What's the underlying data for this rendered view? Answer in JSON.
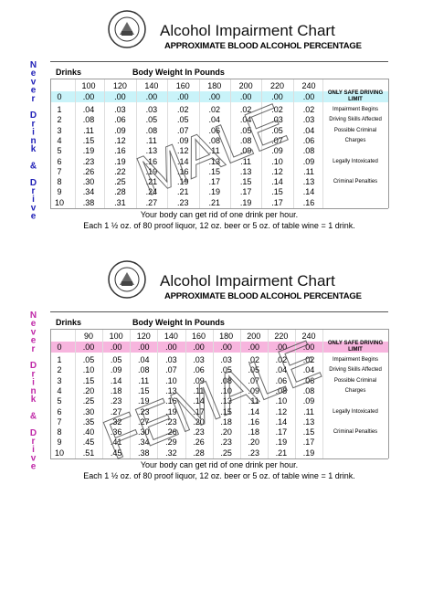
{
  "sections": [
    {
      "title": "Alcohol Impairment Chart",
      "subtitle": "APPROXIMATE BLOOD ALCOHOL PERCENTAGE",
      "side_text": "Never Drink & Drive",
      "watermark": "MALE",
      "drinks_header": "Drinks",
      "weight_header": "Body Weight In Pounds",
      "row_color": "#c9f3f9",
      "side_color": "#2323b8",
      "weights": [
        "100",
        "120",
        "140",
        "160",
        "180",
        "200",
        "220",
        "240"
      ],
      "rows": [
        {
          "drinks": "0",
          "values": [
            ".00",
            ".00",
            ".00",
            ".00",
            ".00",
            ".00",
            ".00",
            ".00"
          ],
          "note": "ONLY SAFE DRIVING LIMIT"
        },
        {
          "drinks": "1",
          "values": [
            ".04",
            ".03",
            ".03",
            ".02",
            ".02",
            ".02",
            ".02",
            ".02"
          ],
          "note": "Impairment Begins"
        },
        {
          "drinks": "2",
          "values": [
            ".08",
            ".06",
            ".05",
            ".05",
            ".04",
            ".04",
            ".03",
            ".03"
          ],
          "note": "Driving Skills Affected"
        },
        {
          "drinks": "3",
          "values": [
            ".11",
            ".09",
            ".08",
            ".07",
            ".06",
            ".05",
            ".05",
            ".04"
          ],
          "note": "Possible Criminal"
        },
        {
          "drinks": "4",
          "values": [
            ".15",
            ".12",
            ".11",
            ".09",
            ".08",
            ".08",
            ".07",
            ".06"
          ],
          "note": "Charges"
        },
        {
          "drinks": "5",
          "values": [
            ".19",
            ".16",
            ".13",
            ".12",
            ".11",
            ".09",
            ".09",
            ".08"
          ]
        },
        {
          "drinks": "6",
          "values": [
            ".23",
            ".19",
            ".16",
            ".14",
            ".13",
            ".11",
            ".10",
            ".09"
          ],
          "note": "Legally Intoxicated"
        },
        {
          "drinks": "7",
          "values": [
            ".26",
            ".22",
            ".19",
            ".16",
            ".15",
            ".13",
            ".12",
            ".11"
          ]
        },
        {
          "drinks": "8",
          "values": [
            ".30",
            ".25",
            ".21",
            ".19",
            ".17",
            ".15",
            ".14",
            ".13"
          ],
          "note": "Criminal Penalties"
        },
        {
          "drinks": "9",
          "values": [
            ".34",
            ".28",
            ".24",
            ".21",
            ".19",
            ".17",
            ".15",
            ".14"
          ]
        },
        {
          "drinks": "10",
          "values": [
            ".38",
            ".31",
            ".27",
            ".23",
            ".21",
            ".19",
            ".17",
            ".16"
          ]
        }
      ],
      "footer": [
        "Your body can get rid of one drink per hour.",
        "Each 1 ½ oz. of 80 proof liquor, 12 oz. beer or 5 oz. of table wine = 1 drink."
      ]
    },
    {
      "title": "Alcohol Impairment Chart",
      "subtitle": "APPROXIMATE BLOOD ALCOHOL PERCENTAGE",
      "side_text": "Never Drink & Drive",
      "watermark": "FEMALE",
      "drinks_header": "Drinks",
      "weight_header": "Body Weight In Pounds",
      "row_color": "#f7b5de",
      "side_color": "#c02aa8",
      "weights": [
        "90",
        "100",
        "120",
        "140",
        "160",
        "180",
        "200",
        "220",
        "240"
      ],
      "rows": [
        {
          "drinks": "0",
          "values": [
            ".00",
            ".00",
            ".00",
            ".00",
            ".00",
            ".00",
            ".00",
            ".00",
            ".00"
          ],
          "note": "ONLY SAFE DRIVING LIMIT"
        },
        {
          "drinks": "1",
          "values": [
            ".05",
            ".05",
            ".04",
            ".03",
            ".03",
            ".03",
            ".02",
            ".02",
            ".02"
          ],
          "note": "Impairment Begins"
        },
        {
          "drinks": "2",
          "values": [
            ".10",
            ".09",
            ".08",
            ".07",
            ".06",
            ".05",
            ".05",
            ".04",
            ".04"
          ],
          "note": "Driving Skills Affected"
        },
        {
          "drinks": "3",
          "values": [
            ".15",
            ".14",
            ".11",
            ".10",
            ".09",
            ".08",
            ".07",
            ".06",
            ".06"
          ],
          "note": "Possible Criminal"
        },
        {
          "drinks": "4",
          "values": [
            ".20",
            ".18",
            ".15",
            ".13",
            ".11",
            ".10",
            ".09",
            ".08",
            ".08"
          ],
          "note": "Charges"
        },
        {
          "drinks": "5",
          "values": [
            ".25",
            ".23",
            ".19",
            ".16",
            ".14",
            ".13",
            ".11",
            ".10",
            ".09"
          ]
        },
        {
          "drinks": "6",
          "values": [
            ".30",
            ".27",
            ".23",
            ".19",
            ".17",
            ".15",
            ".14",
            ".12",
            ".11"
          ],
          "note": "Legally Intoxicated"
        },
        {
          "drinks": "7",
          "values": [
            ".35",
            ".32",
            ".27",
            ".23",
            ".20",
            ".18",
            ".16",
            ".14",
            ".13"
          ]
        },
        {
          "drinks": "8",
          "values": [
            ".40",
            ".36",
            ".30",
            ".26",
            ".23",
            ".20",
            ".18",
            ".17",
            ".15"
          ],
          "note": "Criminal Penalties"
        },
        {
          "drinks": "9",
          "values": [
            ".45",
            ".41",
            ".34",
            ".29",
            ".26",
            ".23",
            ".20",
            ".19",
            ".17"
          ]
        },
        {
          "drinks": "10",
          "values": [
            ".51",
            ".45",
            ".38",
            ".32",
            ".28",
            ".25",
            ".23",
            ".21",
            ".19"
          ]
        }
      ],
      "footer": [
        "Your body can get rid of one drink per hour.",
        "Each 1 ½ oz. of 80 proof liquor, 12 oz. beer or 5 oz. of table wine = 1 drink."
      ]
    }
  ]
}
